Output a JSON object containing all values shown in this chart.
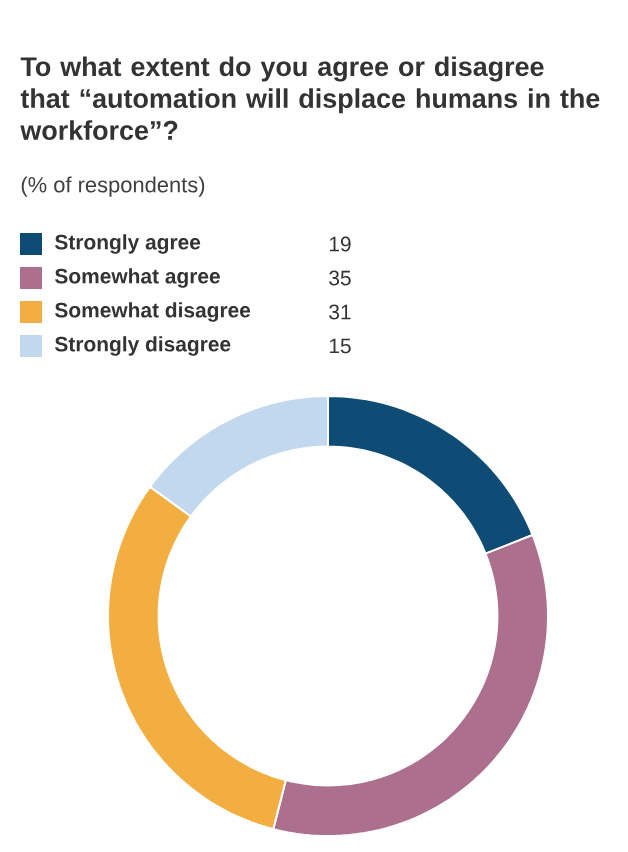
{
  "chart_data": {
    "type": "donut",
    "title": "To what extent do you agree or disagree that “automation will displace humans in the workforce”?",
    "subtitle": "(% of respondents)",
    "categories": [
      "Strongly agree",
      "Somewhat agree",
      "Somewhat disagree",
      "Strongly disagree"
    ],
    "values": [
      19,
      35,
      31,
      15
    ],
    "colors": [
      "#0f4c75",
      "#ad6f8e",
      "#f2ae40",
      "#c2d8ee"
    ],
    "legend": "top",
    "data_labels": true
  }
}
